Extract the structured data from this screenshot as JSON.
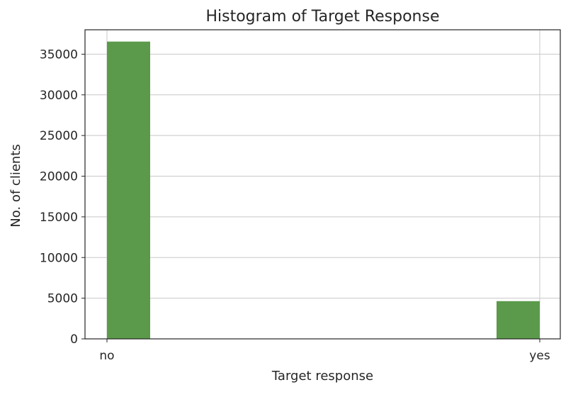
{
  "colors": {
    "bar_fill": "#5a9a4a",
    "grid": "#c8c8c8",
    "axes": "#262626",
    "background": "#ffffff"
  },
  "chart_data": {
    "type": "bar",
    "title": "Histogram of Target Response",
    "xlabel": "Target response",
    "ylabel": "No. of clients",
    "categories": [
      "no",
      "yes"
    ],
    "values": [
      36548,
      4640
    ],
    "ylim": [
      0,
      38000
    ],
    "yticks": [
      0,
      5000,
      10000,
      15000,
      20000,
      25000,
      30000,
      35000
    ],
    "ytick_labels": [
      "0",
      "5000",
      "10000",
      "15000",
      "20000",
      "25000",
      "30000",
      "35000"
    ],
    "grid": true,
    "legend": "none"
  }
}
